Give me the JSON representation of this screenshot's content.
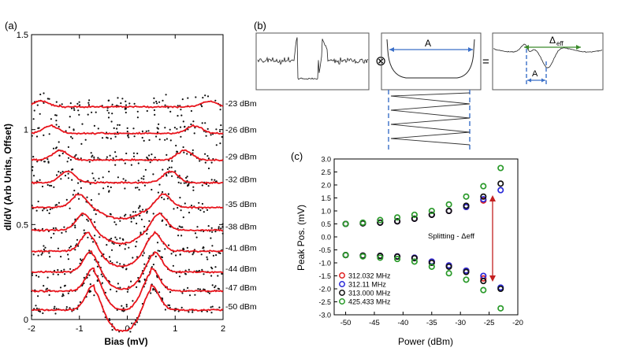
{
  "panel_labels": {
    "a": "(a)",
    "b": "(b)",
    "c": "(c)"
  },
  "chart_data": [
    {
      "type": "line",
      "panel": "(a)",
      "title": "",
      "xlabel": "Bias (mV)",
      "ylabel": "dI/dV (Arb Units, Offset)",
      "xlim": [
        -2,
        2
      ],
      "ylim": [
        0,
        1.5
      ],
      "xticks": [
        "-2",
        "-1",
        "0",
        "1",
        "2"
      ],
      "yticks": [
        "0",
        "0.5",
        "1",
        "1.5"
      ],
      "series": [
        {
          "name": "-50 dBm",
          "baseline": 0.05,
          "peaks": [
            -0.7,
            0.5
          ],
          "amp": 0.13
        },
        {
          "name": "-47 dBm",
          "baseline": 0.15,
          "peaks": [
            -0.7,
            0.5
          ],
          "amp": 0.12
        },
        {
          "name": "-44 dBm",
          "baseline": 0.25,
          "peaks": [
            -0.75,
            0.55
          ],
          "amp": 0.11
        },
        {
          "name": "-41 dBm",
          "baseline": 0.36,
          "peaks": [
            -0.8,
            0.55
          ],
          "amp": 0.1
        },
        {
          "name": "-38 dBm",
          "baseline": 0.47,
          "peaks": [
            -0.9,
            0.65
          ],
          "amp": 0.09
        },
        {
          "name": "-35 dBm",
          "baseline": 0.59,
          "peaks": [
            -1.0,
            0.75
          ],
          "amp": 0.07
        },
        {
          "name": "-32 dBm",
          "baseline": 0.72,
          "peaks": [
            -1.25,
            0.9
          ],
          "amp": 0.06
        },
        {
          "name": "-29 dBm",
          "baseline": 0.84,
          "peaks": [
            -1.4,
            1.2
          ],
          "amp": 0.05
        },
        {
          "name": "-26 dBm",
          "baseline": 0.98,
          "peaks": [
            -1.6,
            1.4
          ],
          "amp": 0.04
        },
        {
          "name": "-23 dBm",
          "baseline": 1.12,
          "peaks": [
            -1.8,
            1.7
          ],
          "amp": 0.03
        }
      ]
    },
    {
      "type": "scatter",
      "panel": "(c)",
      "title": "",
      "xlabel": "Power (dBm)",
      "ylabel": "Peak Pos. (mV)",
      "xlim": [
        -52,
        -20
      ],
      "ylim": [
        -3.0,
        3.0
      ],
      "xticks": [
        "-50",
        "-45",
        "-40",
        "-35",
        "-30",
        "-25",
        "-20"
      ],
      "yticks": [
        "-3.0",
        "-2.5",
        "-2.0",
        "-1.5",
        "-1.0",
        "-0.5",
        "0.0",
        "0.5",
        "1.0",
        "1.5",
        "2.0",
        "2.5",
        "3.0"
      ],
      "annotation": "Splitting - Δeff",
      "series": [
        {
          "name": "312.032 MHz",
          "color": "#e02020",
          "x": [
            -50,
            -47,
            -44,
            -41,
            -38,
            -35,
            -32,
            -29,
            -26
          ],
          "upper": [
            0.5,
            0.52,
            0.55,
            0.6,
            0.7,
            0.85,
            1.0,
            1.15,
            1.4
          ],
          "lower": [
            -0.7,
            -0.72,
            -0.73,
            -0.75,
            -0.8,
            -0.95,
            -1.1,
            -1.3,
            -1.6
          ]
        },
        {
          "name": "312.11 MHz",
          "color": "#2a2ad8",
          "x": [
            -50,
            -47,
            -44,
            -41,
            -38,
            -35,
            -32,
            -29,
            -26,
            -23
          ],
          "upper": [
            0.5,
            0.52,
            0.55,
            0.6,
            0.7,
            0.85,
            1.0,
            1.15,
            1.45,
            1.8
          ],
          "lower": [
            -0.7,
            -0.72,
            -0.73,
            -0.75,
            -0.8,
            -0.95,
            -1.1,
            -1.3,
            -1.5,
            -1.95
          ]
        },
        {
          "name": "313.000 MHz",
          "color": "#111111",
          "x": [
            -50,
            -47,
            -44,
            -41,
            -38,
            -35,
            -32,
            -29,
            -26,
            -23
          ],
          "upper": [
            0.5,
            0.52,
            0.55,
            0.6,
            0.7,
            0.85,
            1.0,
            1.2,
            1.55,
            2.05
          ],
          "lower": [
            -0.7,
            -0.72,
            -0.73,
            -0.76,
            -0.82,
            -1.0,
            -1.15,
            -1.35,
            -1.7,
            -2.0
          ]
        },
        {
          "name": "425.433 MHz",
          "color": "#2a9a2a",
          "x": [
            -50,
            -47,
            -44,
            -41,
            -38,
            -35,
            -32,
            -29,
            -26,
            -23
          ],
          "upper": [
            0.5,
            0.55,
            0.65,
            0.75,
            0.85,
            1.0,
            1.25,
            1.55,
            1.95,
            2.65
          ],
          "lower": [
            -0.7,
            -0.75,
            -0.8,
            -0.85,
            -0.95,
            -1.15,
            -1.4,
            -1.65,
            -2.05,
            -2.75
          ]
        }
      ]
    }
  ],
  "diagram_b": {
    "label_a": "A",
    "label_a2": "A",
    "label_delta": "Δ",
    "label_delta_sub": "eff",
    "operator_convolve": "⊗",
    "operator_equals": "="
  },
  "colors": {
    "fit_red": "#e8141c",
    "data_black": "#111111",
    "arrow_blue": "#3a6fc8",
    "dashed_blue": "#3a6fc8",
    "delta_green": "#3a8a2a",
    "split_arrow": "#c42020"
  }
}
